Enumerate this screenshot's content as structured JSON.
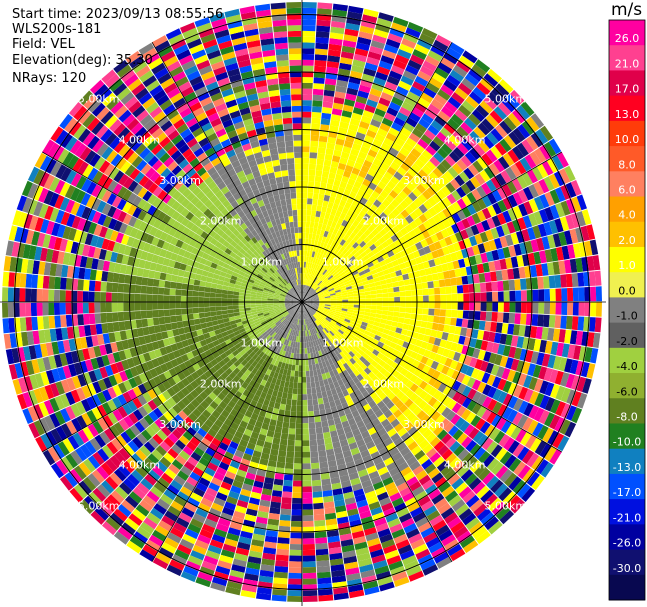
{
  "meta": {
    "start_time": "Start time: 2023/09/13 08:55:56",
    "instrument": "WLS200s-181",
    "field": "Field: VEL",
    "elevation": "Elevation(deg): 35.30",
    "nrays": "NRays: 120"
  },
  "colorbar": {
    "unit": "m/s",
    "ticks": [
      "26.0",
      "21.0",
      "17.0",
      "13.0",
      "10.0",
      "8.0",
      "6.0",
      "4.0",
      "2.0",
      "1.0",
      "0.0",
      "-1.0",
      "-2.0",
      "-4.0",
      "-6.0",
      "-8.0",
      "-10.0",
      "-13.0",
      "-17.0",
      "-21.0",
      "-26.0",
      "-30.0"
    ],
    "colors": [
      "#ff00a0",
      "#ff4090",
      "#e0004a",
      "#ff0020",
      "#ff3c0a",
      "#ff5a28",
      "#ff8060",
      "#ffa000",
      "#ffc000",
      "#ffff00",
      "#f0f050",
      "#808080",
      "#606060",
      "#a0d040",
      "#90b030",
      "#608020",
      "#208020",
      "#1080c0",
      "#0050ff",
      "#0010e0",
      "#0000a0",
      "#101070",
      "#080850"
    ]
  },
  "range_rings": {
    "ring1": "1.00km",
    "ring2": "2.00km",
    "ring3": "3.00km",
    "ring4": "4.00km",
    "ring5": "5.00km"
  },
  "palette": {
    "velocity_positive": "#ffff00",
    "velocity_positive_strong": "#ffc000",
    "velocity_near_zero": "#808080",
    "velocity_negative": "#a0d040",
    "velocity_negative_strong": "#608020",
    "noise": [
      "#ff00a0",
      "#ff4090",
      "#e0004a",
      "#ff0020",
      "#ffff00",
      "#ffc000",
      "#a0d040",
      "#608020",
      "#208020",
      "#1080c0",
      "#0050ff",
      "#0010e0",
      "#0000a0",
      "#101070",
      "#808080",
      "#ff8060"
    ]
  }
}
